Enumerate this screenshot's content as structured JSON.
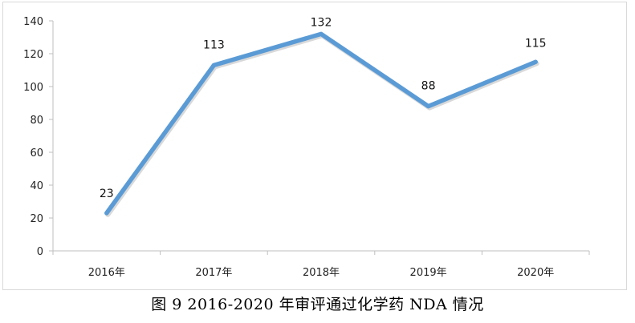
{
  "caption": "图 9 2016-2020 年审评通过化学药 NDA 情况",
  "colors": {
    "line": "#5b9bd5",
    "axis": "#bfbfbf",
    "frame": "#d9d9d9",
    "text": "#222222"
  },
  "chart_data": {
    "type": "line",
    "categories": [
      "2016年",
      "2017年",
      "2018年",
      "2019年",
      "2020年"
    ],
    "series": [
      {
        "values": [
          23,
          113,
          132,
          88,
          115
        ]
      }
    ],
    "data_labels": [
      "23",
      "113",
      "132",
      "88",
      "115"
    ],
    "ylim": [
      0,
      140
    ],
    "yticks": [
      0,
      20,
      40,
      60,
      80,
      100,
      120,
      140
    ],
    "grid": false,
    "legend": "none",
    "title": "",
    "xlabel": "",
    "ylabel": ""
  }
}
